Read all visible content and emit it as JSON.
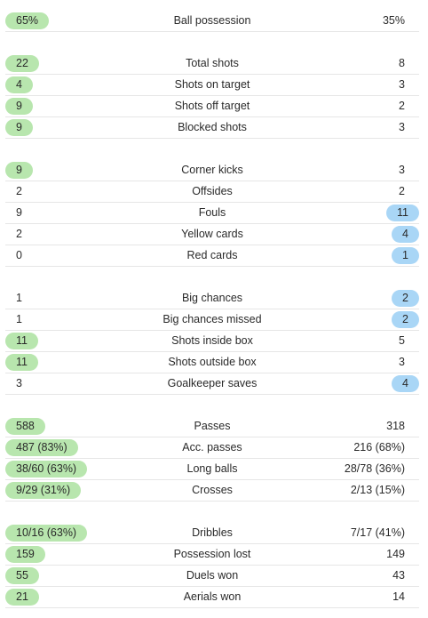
{
  "colors": {
    "home_highlight": "#b8e6ae",
    "away_highlight": "#a9d6f6",
    "divider": "#e6e6e6"
  },
  "stats": [
    {
      "label": "Ball possession",
      "home": "65%",
      "away": "35%",
      "highlight": "home",
      "group": 0
    },
    {
      "label": "Total shots",
      "home": "22",
      "away": "8",
      "highlight": "home",
      "group": 1
    },
    {
      "label": "Shots on target",
      "home": "4",
      "away": "3",
      "highlight": "home",
      "group": 1
    },
    {
      "label": "Shots off target",
      "home": "9",
      "away": "2",
      "highlight": "home",
      "group": 1
    },
    {
      "label": "Blocked shots",
      "home": "9",
      "away": "3",
      "highlight": "home",
      "group": 1
    },
    {
      "label": "Corner kicks",
      "home": "9",
      "away": "3",
      "highlight": "home",
      "group": 2
    },
    {
      "label": "Offsides",
      "home": "2",
      "away": "2",
      "highlight": "none",
      "group": 2
    },
    {
      "label": "Fouls",
      "home": "9",
      "away": "11",
      "highlight": "away",
      "group": 2
    },
    {
      "label": "Yellow cards",
      "home": "2",
      "away": "4",
      "highlight": "away",
      "group": 2
    },
    {
      "label": "Red cards",
      "home": "0",
      "away": "1",
      "highlight": "away",
      "group": 2
    },
    {
      "label": "Big chances",
      "home": "1",
      "away": "2",
      "highlight": "away",
      "group": 3
    },
    {
      "label": "Big chances missed",
      "home": "1",
      "away": "2",
      "highlight": "away",
      "group": 3
    },
    {
      "label": "Shots inside box",
      "home": "11",
      "away": "5",
      "highlight": "home",
      "group": 3
    },
    {
      "label": "Shots outside box",
      "home": "11",
      "away": "3",
      "highlight": "home",
      "group": 3
    },
    {
      "label": "Goalkeeper saves",
      "home": "3",
      "away": "4",
      "highlight": "away",
      "group": 3
    },
    {
      "label": "Passes",
      "home": "588",
      "away": "318",
      "highlight": "home",
      "group": 4
    },
    {
      "label": "Acc. passes",
      "home": "487 (83%)",
      "away": "216 (68%)",
      "highlight": "home",
      "group": 4
    },
    {
      "label": "Long balls",
      "home": "38/60 (63%)",
      "away": "28/78 (36%)",
      "highlight": "home",
      "group": 4
    },
    {
      "label": "Crosses",
      "home": "9/29 (31%)",
      "away": "2/13 (15%)",
      "highlight": "home",
      "group": 4
    },
    {
      "label": "Dribbles",
      "home": "10/16 (63%)",
      "away": "7/17 (41%)",
      "highlight": "home",
      "group": 5
    },
    {
      "label": "Possession lost",
      "home": "159",
      "away": "149",
      "highlight": "home",
      "group": 5
    },
    {
      "label": "Duels won",
      "home": "55",
      "away": "43",
      "highlight": "home",
      "group": 5
    },
    {
      "label": "Aerials won",
      "home": "21",
      "away": "14",
      "highlight": "home",
      "group": 5
    }
  ]
}
